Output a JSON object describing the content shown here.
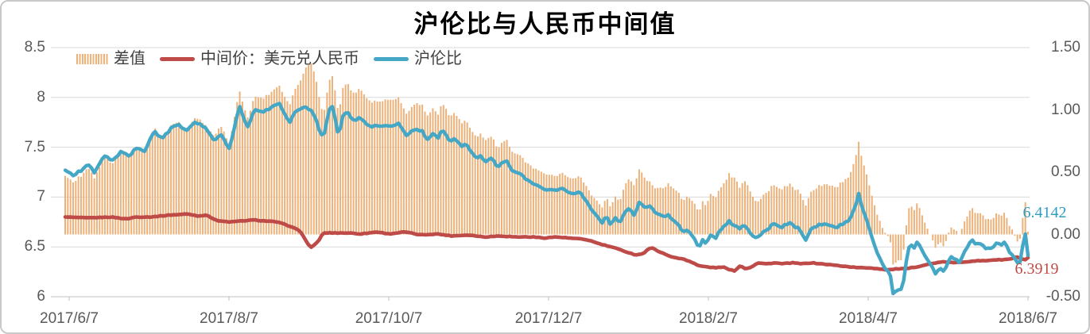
{
  "title": "沪伦比与人民币中间值",
  "legend": [
    {
      "label": "差值",
      "type": "bar",
      "color": "#ECB27A"
    },
    {
      "label": "中间价：美元兑人民币",
      "type": "line",
      "color": "#BE4B48"
    },
    {
      "label": "沪伦比",
      "type": "line",
      "color": "#45A7C6"
    }
  ],
  "chart_data": {
    "type": "combo",
    "title": "沪伦比与人民币中间值",
    "x_labels": [
      "2017/6/7",
      "2017/8/7",
      "2017/10/7",
      "2017/12/7",
      "2018/2/7",
      "2018/4/7",
      "2018/6/7"
    ],
    "left_axis": {
      "min": 6,
      "max": 8.5,
      "ticks": [
        "8.5",
        "8",
        "7.5",
        "7",
        "6.5",
        "6"
      ],
      "tick_values": [
        8.5,
        8,
        7.5,
        7,
        6.5,
        6
      ]
    },
    "right_axis": {
      "min": -0.5,
      "max": 1.5,
      "ticks": [
        "1.50",
        "1.00",
        "0.50",
        "0.00",
        "-0.50"
      ],
      "tick_values": [
        1.5,
        1.0,
        0.5,
        0.0,
        -0.5
      ]
    },
    "grid": "horizontal gridlines at left-axis ticks only; legend top-left inside plot",
    "colors": {
      "grid": "#d9d9d9",
      "axis_text": "#595959",
      "tick": "#bfbfbf",
      "baseline": "#c0c0c0"
    },
    "series": [
      {
        "name": "差值",
        "type": "bar",
        "axis": "right",
        "color": "#ECB27A",
        "derived": "沪伦比 - 中间价：美元兑人民币 (thin daily bars from 0.00 baseline)"
      },
      {
        "name": "中间价：美元兑人民币",
        "type": "line",
        "axis": "left",
        "color": "#BE4B48",
        "anchors": [
          [
            0.0,
            6.8
          ],
          [
            0.023,
            6.79
          ],
          [
            0.048,
            6.8
          ],
          [
            0.064,
            6.78
          ],
          [
            0.073,
            6.8
          ],
          [
            0.089,
            6.8
          ],
          [
            0.109,
            6.82
          ],
          [
            0.128,
            6.83
          ],
          [
            0.138,
            6.81
          ],
          [
            0.146,
            6.82
          ],
          [
            0.159,
            6.76
          ],
          [
            0.171,
            6.75
          ],
          [
            0.183,
            6.76
          ],
          [
            0.196,
            6.77
          ],
          [
            0.208,
            6.76
          ],
          [
            0.22,
            6.75
          ],
          [
            0.233,
            6.71
          ],
          [
            0.244,
            6.66
          ],
          [
            0.252,
            6.53
          ],
          [
            0.256,
            6.49
          ],
          [
            0.263,
            6.56
          ],
          [
            0.268,
            6.64
          ],
          [
            0.281,
            6.64
          ],
          [
            0.295,
            6.64
          ],
          [
            0.307,
            6.63
          ],
          [
            0.324,
            6.65
          ],
          [
            0.336,
            6.63
          ],
          [
            0.353,
            6.65
          ],
          [
            0.369,
            6.62
          ],
          [
            0.386,
            6.63
          ],
          [
            0.402,
            6.61
          ],
          [
            0.419,
            6.62
          ],
          [
            0.435,
            6.6
          ],
          [
            0.452,
            6.61
          ],
          [
            0.468,
            6.6
          ],
          [
            0.485,
            6.6
          ],
          [
            0.497,
            6.59
          ],
          [
            0.51,
            6.6
          ],
          [
            0.522,
            6.59
          ],
          [
            0.534,
            6.58
          ],
          [
            0.543,
            6.57
          ],
          [
            0.555,
            6.53
          ],
          [
            0.567,
            6.5
          ],
          [
            0.58,
            6.46
          ],
          [
            0.592,
            6.42
          ],
          [
            0.6,
            6.43
          ],
          [
            0.606,
            6.48
          ],
          [
            0.611,
            6.49
          ],
          [
            0.617,
            6.45
          ],
          [
            0.625,
            6.42
          ],
          [
            0.633,
            6.39
          ],
          [
            0.642,
            6.38
          ],
          [
            0.65,
            6.35
          ],
          [
            0.658,
            6.31
          ],
          [
            0.666,
            6.3
          ],
          [
            0.675,
            6.29
          ],
          [
            0.683,
            6.3
          ],
          [
            0.69,
            6.27
          ],
          [
            0.695,
            6.26
          ],
          [
            0.701,
            6.31
          ],
          [
            0.707,
            6.28
          ],
          [
            0.713,
            6.3
          ],
          [
            0.719,
            6.34
          ],
          [
            0.728,
            6.33
          ],
          [
            0.737,
            6.34
          ],
          [
            0.745,
            6.33
          ],
          [
            0.755,
            6.34
          ],
          [
            0.765,
            6.33
          ],
          [
            0.775,
            6.34
          ],
          [
            0.785,
            6.33
          ],
          [
            0.795,
            6.32
          ],
          [
            0.805,
            6.31
          ],
          [
            0.815,
            6.3
          ],
          [
            0.825,
            6.29
          ],
          [
            0.835,
            6.29
          ],
          [
            0.845,
            6.28
          ],
          [
            0.855,
            6.27
          ],
          [
            0.865,
            6.28
          ],
          [
            0.874,
            6.28
          ],
          [
            0.884,
            6.3
          ],
          [
            0.894,
            6.32
          ],
          [
            0.904,
            6.34
          ],
          [
            0.914,
            6.35
          ],
          [
            0.924,
            6.34
          ],
          [
            0.934,
            6.35
          ],
          [
            0.944,
            6.36
          ],
          [
            0.954,
            6.36
          ],
          [
            0.964,
            6.37
          ],
          [
            0.973,
            6.37
          ],
          [
            0.983,
            6.38
          ],
          [
            0.988,
            6.4
          ],
          [
            0.993,
            6.38
          ],
          [
            0.997,
            6.37
          ],
          [
            1.0,
            6.3919
          ]
        ]
      },
      {
        "name": "沪伦比",
        "type": "line",
        "axis": "left",
        "color": "#45A7C6",
        "anchors": [
          [
            0.0,
            7.27
          ],
          [
            0.008,
            7.22
          ],
          [
            0.017,
            7.27
          ],
          [
            0.023,
            7.33
          ],
          [
            0.03,
            7.25
          ],
          [
            0.04,
            7.42
          ],
          [
            0.048,
            7.37
          ],
          [
            0.058,
            7.45
          ],
          [
            0.066,
            7.41
          ],
          [
            0.074,
            7.5
          ],
          [
            0.083,
            7.46
          ],
          [
            0.092,
            7.66
          ],
          [
            0.101,
            7.59
          ],
          [
            0.109,
            7.68
          ],
          [
            0.117,
            7.74
          ],
          [
            0.126,
            7.66
          ],
          [
            0.135,
            7.76
          ],
          [
            0.144,
            7.71
          ],
          [
            0.154,
            7.57
          ],
          [
            0.162,
            7.63
          ],
          [
            0.171,
            7.48
          ],
          [
            0.175,
            7.66
          ],
          [
            0.181,
            7.92
          ],
          [
            0.189,
            7.7
          ],
          [
            0.197,
            7.88
          ],
          [
            0.206,
            7.85
          ],
          [
            0.214,
            7.9
          ],
          [
            0.222,
            7.95
          ],
          [
            0.228,
            7.83
          ],
          [
            0.233,
            7.75
          ],
          [
            0.239,
            7.86
          ],
          [
            0.249,
            7.91
          ],
          [
            0.258,
            7.84
          ],
          [
            0.263,
            7.7
          ],
          [
            0.268,
            7.59
          ],
          [
            0.274,
            7.88
          ],
          [
            0.278,
            7.91
          ],
          [
            0.284,
            7.61
          ],
          [
            0.289,
            7.83
          ],
          [
            0.292,
            7.86
          ],
          [
            0.3,
            7.77
          ],
          [
            0.306,
            7.79
          ],
          [
            0.311,
            7.75
          ],
          [
            0.316,
            7.71
          ],
          [
            0.33,
            7.71
          ],
          [
            0.341,
            7.71
          ],
          [
            0.347,
            7.75
          ],
          [
            0.351,
            7.67
          ],
          [
            0.355,
            7.62
          ],
          [
            0.361,
            7.67
          ],
          [
            0.372,
            7.67
          ],
          [
            0.375,
            7.56
          ],
          [
            0.382,
            7.63
          ],
          [
            0.388,
            7.59
          ],
          [
            0.391,
            7.68
          ],
          [
            0.396,
            7.61
          ],
          [
            0.4,
            7.55
          ],
          [
            0.405,
            7.59
          ],
          [
            0.413,
            7.5
          ],
          [
            0.416,
            7.54
          ],
          [
            0.421,
            7.46
          ],
          [
            0.427,
            7.39
          ],
          [
            0.431,
            7.42
          ],
          [
            0.436,
            7.36
          ],
          [
            0.442,
            7.4
          ],
          [
            0.449,
            7.31
          ],
          [
            0.459,
            7.36
          ],
          [
            0.464,
            7.27
          ],
          [
            0.472,
            7.23
          ],
          [
            0.483,
            7.15
          ],
          [
            0.495,
            7.09
          ],
          [
            0.508,
            7.06
          ],
          [
            0.516,
            7.1
          ],
          [
            0.522,
            7.04
          ],
          [
            0.53,
            7.03
          ],
          [
            0.534,
            7.07
          ],
          [
            0.543,
            6.93
          ],
          [
            0.551,
            6.82
          ],
          [
            0.558,
            6.74
          ],
          [
            0.562,
            6.81
          ],
          [
            0.567,
            6.71
          ],
          [
            0.571,
            6.79
          ],
          [
            0.576,
            6.74
          ],
          [
            0.583,
            6.87
          ],
          [
            0.587,
            6.89
          ],
          [
            0.591,
            6.81
          ],
          [
            0.597,
            6.96
          ],
          [
            0.602,
            6.89
          ],
          [
            0.607,
            6.91
          ],
          [
            0.613,
            6.84
          ],
          [
            0.619,
            6.81
          ],
          [
            0.626,
            6.82
          ],
          [
            0.634,
            6.76
          ],
          [
            0.642,
            6.65
          ],
          [
            0.646,
            6.68
          ],
          [
            0.651,
            6.62
          ],
          [
            0.655,
            6.55
          ],
          [
            0.658,
            6.49
          ],
          [
            0.662,
            6.57
          ],
          [
            0.666,
            6.54
          ],
          [
            0.671,
            6.62
          ],
          [
            0.676,
            6.59
          ],
          [
            0.68,
            6.66
          ],
          [
            0.685,
            6.71
          ],
          [
            0.69,
            6.77
          ],
          [
            0.694,
            6.71
          ],
          [
            0.7,
            6.69
          ],
          [
            0.706,
            6.71
          ],
          [
            0.712,
            6.63
          ],
          [
            0.719,
            6.59
          ],
          [
            0.728,
            6.67
          ],
          [
            0.736,
            6.73
          ],
          [
            0.744,
            6.69
          ],
          [
            0.752,
            6.75
          ],
          [
            0.757,
            6.7
          ],
          [
            0.763,
            6.68
          ],
          [
            0.769,
            6.57
          ],
          [
            0.775,
            6.68
          ],
          [
            0.784,
            6.73
          ],
          [
            0.793,
            6.72
          ],
          [
            0.801,
            6.7
          ],
          [
            0.809,
            6.73
          ],
          [
            0.816,
            6.79
          ],
          [
            0.821,
            6.91
          ],
          [
            0.824,
            7.05
          ],
          [
            0.828,
            6.89
          ],
          [
            0.833,
            6.76
          ],
          [
            0.838,
            6.6
          ],
          [
            0.843,
            6.45
          ],
          [
            0.847,
            6.36
          ],
          [
            0.851,
            6.28
          ],
          [
            0.854,
            6.26
          ],
          [
            0.857,
            6.21
          ],
          [
            0.861,
            5.97
          ],
          [
            0.864,
            6.12
          ],
          [
            0.867,
            6.03
          ],
          [
            0.871,
            6.16
          ],
          [
            0.875,
            6.45
          ],
          [
            0.878,
            6.53
          ],
          [
            0.881,
            6.47
          ],
          [
            0.885,
            6.55
          ],
          [
            0.889,
            6.49
          ],
          [
            0.893,
            6.42
          ],
          [
            0.9,
            6.3
          ],
          [
            0.904,
            6.23
          ],
          [
            0.908,
            6.3
          ],
          [
            0.912,
            6.26
          ],
          [
            0.917,
            6.34
          ],
          [
            0.921,
            6.41
          ],
          [
            0.925,
            6.37
          ],
          [
            0.929,
            6.33
          ],
          [
            0.933,
            6.43
          ],
          [
            0.937,
            6.49
          ],
          [
            0.942,
            6.58
          ],
          [
            0.946,
            6.52
          ],
          [
            0.951,
            6.53
          ],
          [
            0.956,
            6.49
          ],
          [
            0.961,
            6.47
          ],
          [
            0.966,
            6.53
          ],
          [
            0.971,
            6.52
          ],
          [
            0.976,
            6.54
          ],
          [
            0.981,
            6.45
          ],
          [
            0.986,
            6.39
          ],
          [
            0.991,
            6.31
          ],
          [
            0.997,
            6.65
          ],
          [
            1.0,
            6.4142
          ]
        ]
      }
    ],
    "end_labels": [
      {
        "text": "6.4142",
        "series": "沪伦比",
        "color": "#2f9dc2"
      },
      {
        "text": "6.3919",
        "series": "中间价：美元兑人民币",
        "color": "#be4b48"
      }
    ],
    "n_points": 365
  }
}
